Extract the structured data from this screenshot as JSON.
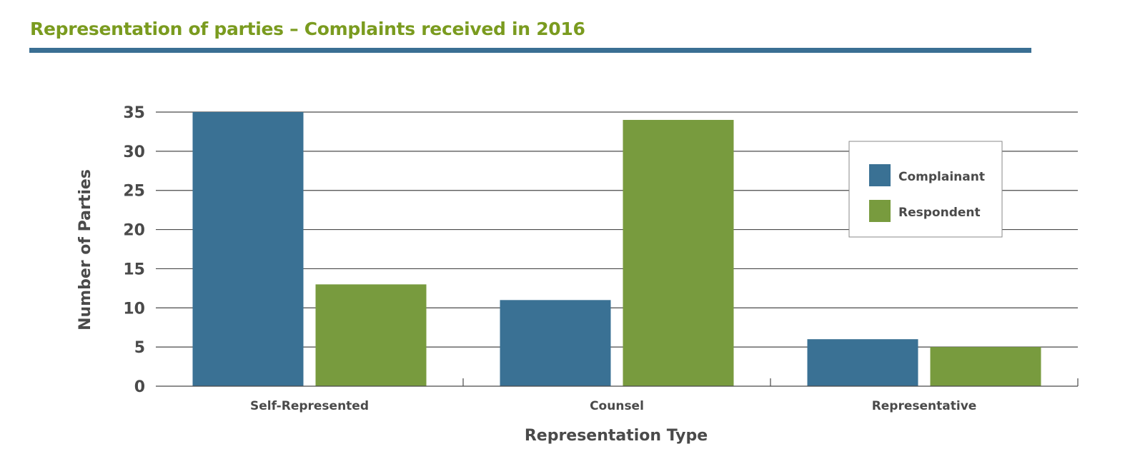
{
  "header": {
    "title": "Representation of parties – Complaints received in 2016"
  },
  "colors": {
    "title": "#7a9b1f",
    "rule": "#3a6f93",
    "complainant": "#3a7194",
    "respondent": "#789b3e"
  },
  "chart_data": {
    "type": "bar",
    "title": "Representation of parties – Complaints received in 2016",
    "xlabel": "Representation Type",
    "ylabel": "Number of Parties",
    "categories": [
      "Self-Represented",
      "Counsel",
      "Representative"
    ],
    "series": [
      {
        "name": "Complainant",
        "values": [
          35,
          11,
          6
        ]
      },
      {
        "name": "Respondent",
        "values": [
          13,
          34,
          5
        ]
      }
    ],
    "ylim": [
      0,
      35
    ],
    "yticks": [
      0,
      5,
      10,
      15,
      20,
      25,
      30,
      35
    ],
    "grid": true,
    "legend_position": "top-right"
  }
}
